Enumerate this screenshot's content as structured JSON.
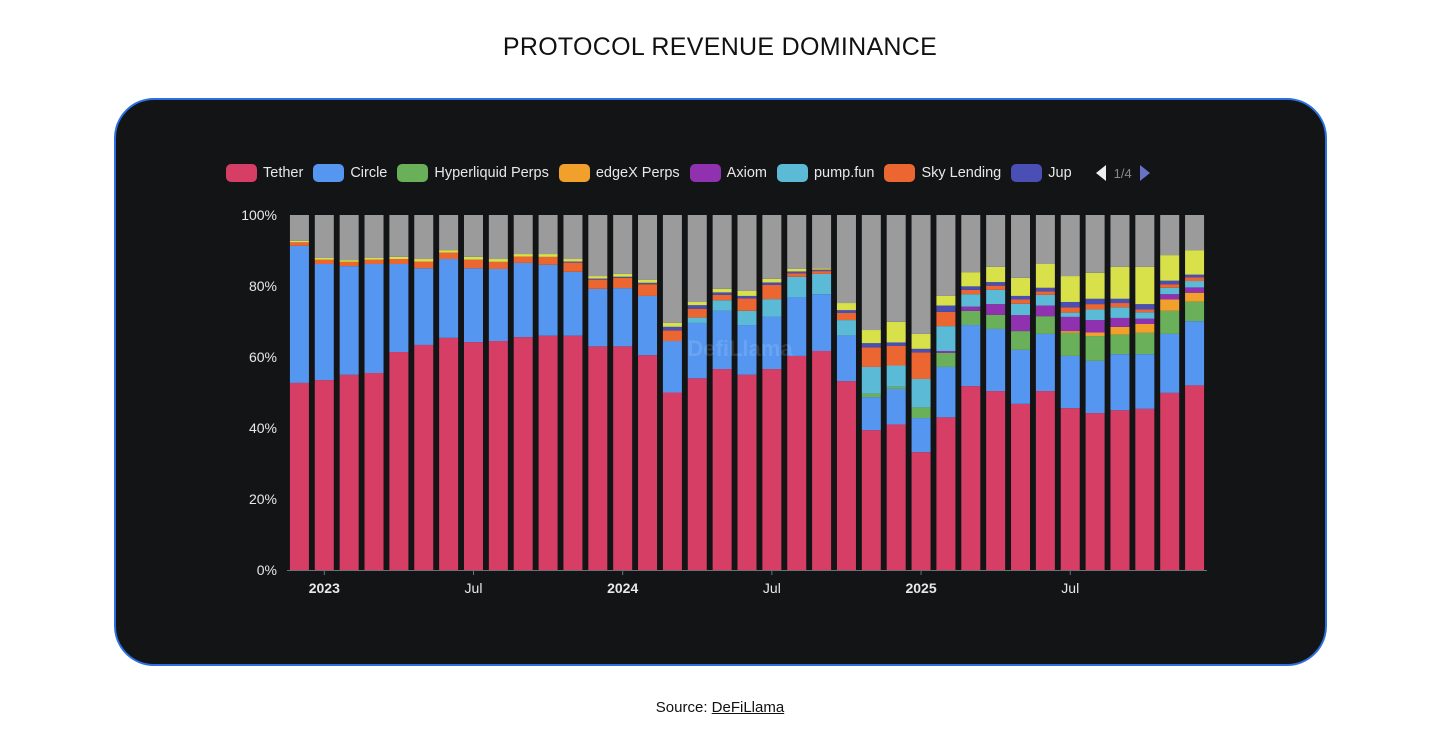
{
  "title": "PROTOCOL REVENUE DOMINANCE",
  "source": {
    "label": "Source:",
    "link_text": "DeFiLlama"
  },
  "legend_pager": "1/4",
  "watermark": "DefiLlama",
  "chart_data": {
    "type": "bar",
    "stacked": true,
    "normalized": true,
    "categories": [
      "2022-12",
      "2023-01",
      "2023-02",
      "2023-03",
      "2023-04",
      "2023-05",
      "2023-06",
      "2023-07",
      "2023-08",
      "2023-09",
      "2023-10",
      "2023-11",
      "2023-12",
      "2024-01",
      "2024-02",
      "2024-03",
      "2024-04",
      "2024-05",
      "2024-06",
      "2024-07",
      "2024-08",
      "2024-09",
      "2024-10",
      "2024-11",
      "2024-12",
      "2025-01",
      "2025-02",
      "2025-03",
      "2025-04",
      "2025-05",
      "2025-06",
      "2025-07",
      "2025-08",
      "2025-09",
      "2025-10",
      "2025-11",
      "2025-12"
    ],
    "x_ticks": [
      {
        "at": "2023-01",
        "label": "2023",
        "bold": true
      },
      {
        "at": "2023-07",
        "label": "Jul",
        "bold": false
      },
      {
        "at": "2024-01",
        "label": "2024",
        "bold": true
      },
      {
        "at": "2024-07",
        "label": "Jul",
        "bold": false
      },
      {
        "at": "2025-01",
        "label": "2025",
        "bold": true
      },
      {
        "at": "2025-07",
        "label": "Jul",
        "bold": false
      }
    ],
    "y_ticks": [
      "0%",
      "20%",
      "40%",
      "60%",
      "80%",
      "100%"
    ],
    "ylim": [
      0,
      100
    ],
    "grid": false,
    "legend_position": "top",
    "remainder_color": "#9b9b9b",
    "series": [
      {
        "name": "Tether",
        "color": "#d63e65",
        "values": [
          52.7,
          53.5,
          55,
          55.5,
          61.4,
          63.4,
          65.4,
          64.2,
          64.5,
          65.6,
          66,
          66,
          63,
          63,
          60.5,
          50,
          54,
          56.6,
          55,
          56.6,
          60.3,
          61.7,
          53.2,
          39.4,
          41,
          33.2,
          43,
          51.8,
          50.4,
          46.8,
          50.4,
          45.6,
          44.2,
          45,
          45.4,
          49.9,
          52
        ]
      },
      {
        "name": "Circle",
        "color": "#5597f0",
        "values": [
          38.6,
          32.7,
          30.6,
          30.7,
          24.8,
          21.6,
          22.2,
          20.8,
          20.3,
          20.9,
          20,
          18,
          16.2,
          16.4,
          16.7,
          14.5,
          15.6,
          16.4,
          14,
          14.7,
          16.6,
          16,
          12.8,
          9.3,
          10,
          9.6,
          14.2,
          17.2,
          17.5,
          15.2,
          16.1,
          14.7,
          14.7,
          15.8,
          15.4,
          16.6,
          18.1
        ]
      },
      {
        "name": "Hyperliquid Perps",
        "color": "#6aaf5a",
        "values": [
          0,
          0,
          0,
          0,
          0,
          0,
          0,
          0,
          0,
          0,
          0,
          0,
          0,
          0,
          0,
          0,
          0,
          0,
          0,
          0,
          0,
          0,
          0,
          1,
          0.6,
          3,
          4,
          4,
          4,
          5.3,
          5,
          6.5,
          7,
          5.5,
          6,
          6.5,
          5.5
        ]
      },
      {
        "name": "edgeX Perps",
        "color": "#f0a02b",
        "values": [
          0,
          0,
          0,
          0,
          0,
          0,
          0,
          0,
          0,
          0,
          0,
          0,
          0,
          0,
          0,
          0,
          0,
          0,
          0,
          0,
          0,
          0,
          0,
          0,
          0,
          0,
          0,
          0,
          0,
          0,
          0,
          0.5,
          1,
          2.2,
          2.5,
          3.2,
          2.5
        ]
      },
      {
        "name": "Axiom",
        "color": "#9032b0",
        "values": [
          0,
          0,
          0,
          0,
          0,
          0,
          0,
          0,
          0,
          0,
          0,
          0,
          0,
          0,
          0,
          0,
          0,
          0,
          0,
          0,
          0,
          0,
          0,
          0,
          0,
          0,
          0.5,
          1.2,
          3,
          4.5,
          3,
          4,
          3.5,
          2.5,
          1.5,
          1.5,
          1.5
        ]
      },
      {
        "name": "pump.fun",
        "color": "#5bbad6",
        "values": [
          0,
          0,
          0,
          0,
          0,
          0,
          0,
          0,
          0,
          0,
          0,
          0,
          0,
          0,
          0,
          0,
          1.5,
          3,
          4,
          5,
          5.7,
          5.7,
          4.4,
          7.5,
          6,
          8,
          7,
          3.5,
          4,
          3.2,
          3,
          1.2,
          3,
          3,
          1.8,
          1.8,
          1.8
        ]
      },
      {
        "name": "Sky Lending",
        "color": "#ec6632",
        "values": [
          1,
          1.2,
          1.2,
          1.2,
          1.4,
          1.9,
          1.8,
          2.4,
          2,
          1.8,
          2.2,
          2.6,
          2.6,
          2.9,
          3.3,
          3,
          2.5,
          1.5,
          3.5,
          4,
          1,
          0.8,
          2,
          5.5,
          5.5,
          7.5,
          4,
          1.2,
          1.2,
          1.2,
          1,
          1.5,
          1.5,
          1.2,
          0.8,
          1,
          1
        ]
      },
      {
        "name": "Jup",
        "color": "#4a4fb5",
        "values": [
          0,
          0,
          0,
          0,
          0,
          0,
          0,
          0,
          0,
          0,
          0,
          0.3,
          0.3,
          0.3,
          0.4,
          1,
          1,
          0.7,
          0.7,
          0.7,
          0.5,
          0.4,
          0.8,
          1.2,
          1,
          1,
          1.8,
          1,
          1,
          1,
          1,
          1.5,
          1.5,
          1.2,
          1.5,
          1,
          0.8
        ]
      },
      {
        "color": "#d8e04a",
        "values": [
          0.4,
          0.5,
          0.5,
          0.5,
          0.6,
          0.7,
          0.7,
          0.8,
          0.8,
          0.7,
          0.8,
          0.7,
          0.7,
          0.8,
          0.8,
          1.1,
          0.9,
          1,
          1.4,
          1,
          0.7,
          0.4,
          2,
          3.7,
          5.8,
          4.2,
          2.7,
          4,
          4.3,
          5.1,
          6.7,
          7.3,
          7.3,
          9,
          10.5,
          7.2,
          6.9
        ]
      }
    ]
  }
}
